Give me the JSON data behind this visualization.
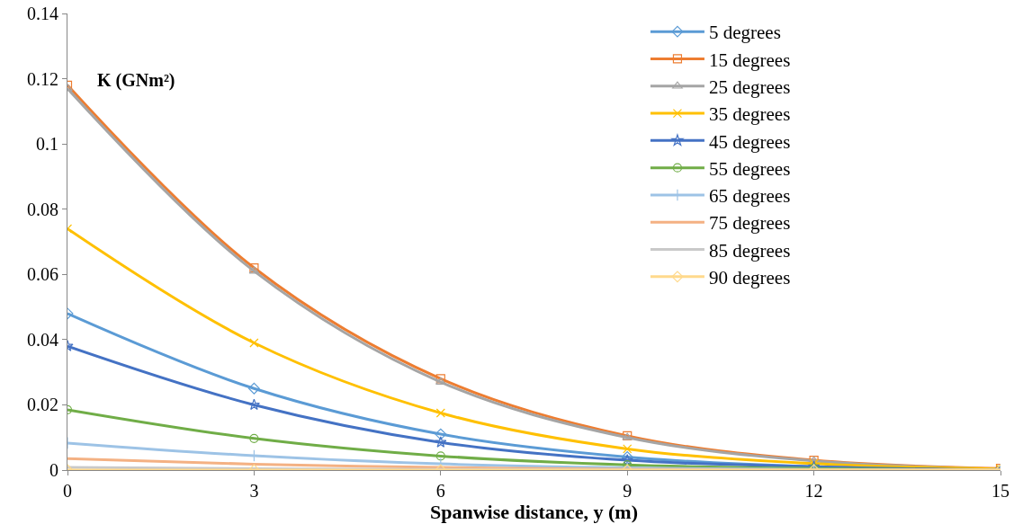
{
  "chart_data": {
    "type": "line",
    "xlabel": "Spanwise distance, y (m)",
    "annotations": [
      "K (GNm²)"
    ],
    "x": [
      0,
      3,
      6,
      9,
      12,
      15
    ],
    "series": [
      {
        "name": "5 degrees",
        "color": "#5b9bd5",
        "marker": "diamond",
        "values": [
          0.048,
          0.025,
          0.011,
          0.004,
          0.001,
          0
        ]
      },
      {
        "name": "15 degrees",
        "color": "#ed7d31",
        "marker": "square",
        "values": [
          0.118,
          0.062,
          0.028,
          0.0105,
          0.003,
          0.0005
        ]
      },
      {
        "name": "25 degrees",
        "color": "#a5a5a5",
        "marker": "triangle",
        "values": [
          0.117,
          0.061,
          0.027,
          0.01,
          0.0028,
          0.0003
        ]
      },
      {
        "name": "35 degrees",
        "color": "#ffc000",
        "marker": "cross",
        "values": [
          0.074,
          0.039,
          0.0175,
          0.0065,
          0.002,
          0.0003
        ]
      },
      {
        "name": "45 degrees",
        "color": "#4472c4",
        "marker": "star",
        "values": [
          0.038,
          0.02,
          0.0085,
          0.003,
          0.001,
          0
        ]
      },
      {
        "name": "55 degrees",
        "color": "#70ad47",
        "marker": "circle",
        "values": [
          0.0185,
          0.0097,
          0.0043,
          0.0016,
          0.0005,
          0
        ]
      },
      {
        "name": "65 degrees",
        "color": "#9dc3e6",
        "marker": "plus",
        "values": [
          0.0083,
          0.0044,
          0.0019,
          0.0007,
          0.0002,
          0
        ]
      },
      {
        "name": "75 degrees",
        "color": "#f4b183",
        "marker": "none",
        "values": [
          0.0035,
          0.0018,
          0.0008,
          0.0003,
          0.0001,
          0
        ]
      },
      {
        "name": "85 degrees",
        "color": "#c9c9c9",
        "marker": "none",
        "values": [
          0.0008,
          0.0004,
          0.0002,
          0.0001,
          0,
          0
        ]
      },
      {
        "name": "90 degrees",
        "color": "#ffd98c",
        "marker": "diamond",
        "values": [
          0,
          0,
          0,
          0,
          0,
          0
        ]
      }
    ],
    "xlim": [
      0,
      15
    ],
    "xticks": [
      0,
      3,
      6,
      9,
      12,
      15
    ],
    "ylim": [
      0,
      0.14
    ],
    "yticks": [
      0,
      0.02,
      0.04,
      0.06,
      0.08,
      0.1,
      0.12,
      0.14
    ],
    "grid": false,
    "legend": "top right",
    "line_style": "solid"
  }
}
